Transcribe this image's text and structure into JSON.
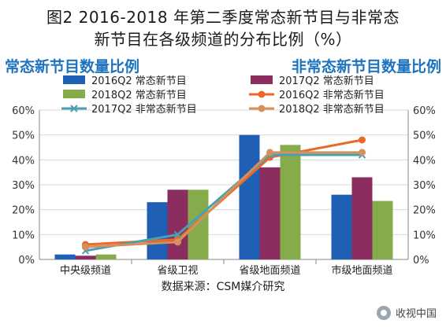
{
  "title_line1": "图2 2016-2018 年第二季度常态新节目与非常态",
  "title_line2": "新节目在各级频道的分布比例（%）",
  "left_axis_title": "常态新节目数量比例",
  "right_axis_title": "非常态新节目数量比例",
  "source": "数据来源：CSM媒介研究",
  "watermark": "收视中国",
  "colors": {
    "bar2016": "#1f5fb4",
    "bar2017": "#8b2d5f",
    "bar2018": "#86ab4a",
    "line2016": "#e8692a",
    "line2017": "#4a9fb3",
    "line2018": "#d4915a",
    "axis_title": "#1e73be"
  },
  "chart_data": {
    "type": "bar",
    "categories": [
      "中央级频道",
      "省级卫视",
      "省级地面频道",
      "市级地面频道"
    ],
    "series": [
      {
        "name": "2016Q2 常态新节目",
        "kind": "bar",
        "axis": "left",
        "values": [
          2,
          23,
          50,
          26
        ]
      },
      {
        "name": "2017Q2 常态新节目",
        "kind": "bar",
        "axis": "left",
        "values": [
          1.5,
          28,
          37,
          33
        ]
      },
      {
        "name": "2018Q2 常态新节目",
        "kind": "bar",
        "axis": "left",
        "values": [
          2,
          28,
          46,
          23.5
        ]
      },
      {
        "name": "2016Q2 非常态新节目",
        "kind": "line",
        "axis": "right",
        "values": [
          6,
          8,
          41,
          48
        ]
      },
      {
        "name": "2017Q2 非常态新节目",
        "kind": "line",
        "axis": "right",
        "values": [
          3.5,
          10,
          42,
          42
        ]
      },
      {
        "name": "2018Q2 非常态新节目",
        "kind": "line",
        "axis": "right",
        "values": [
          5,
          7,
          43,
          43
        ]
      }
    ],
    "yticks": [
      "0%",
      "10%",
      "20%",
      "30%",
      "40%",
      "50%",
      "60%"
    ],
    "ylim": [
      0,
      60
    ],
    "y2lim": [
      0,
      60
    ],
    "grid": true,
    "legend_position": "top"
  }
}
